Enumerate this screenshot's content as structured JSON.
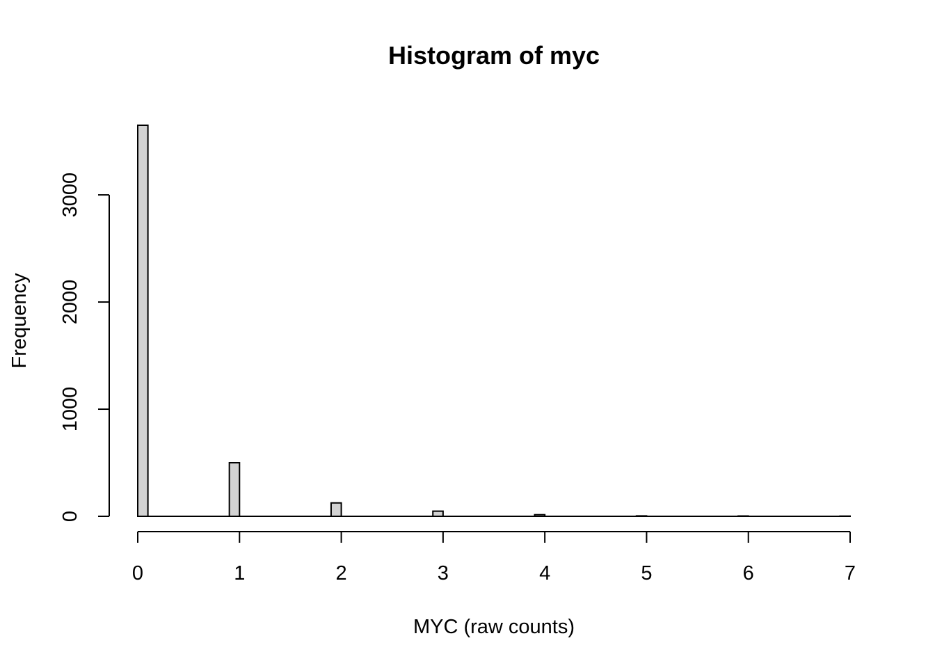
{
  "chart_data": {
    "type": "bar",
    "title": "Histogram of myc",
    "xlabel": "MYC (raw counts)",
    "ylabel": "Frequency",
    "xlim": [
      0,
      7
    ],
    "ylim": [
      0,
      3650
    ],
    "x_ticks": [
      0,
      1,
      2,
      3,
      4,
      5,
      6,
      7
    ],
    "y_ticks": [
      0,
      1000,
      2000,
      3000
    ],
    "bin_width": 0.1,
    "bins": [
      {
        "start": 0.0,
        "end": 0.1,
        "count": 3650
      },
      {
        "start": 0.9,
        "end": 1.0,
        "count": 500
      },
      {
        "start": 1.9,
        "end": 2.0,
        "count": 125
      },
      {
        "start": 2.9,
        "end": 3.0,
        "count": 48
      },
      {
        "start": 3.9,
        "end": 4.0,
        "count": 15
      },
      {
        "start": 4.9,
        "end": 5.0,
        "count": 4
      },
      {
        "start": 5.9,
        "end": 6.0,
        "count": 3
      },
      {
        "start": 6.9,
        "end": 7.0,
        "count": 2
      }
    ],
    "bar_color": "#d3d3d3",
    "grid": false,
    "legend": "none"
  }
}
